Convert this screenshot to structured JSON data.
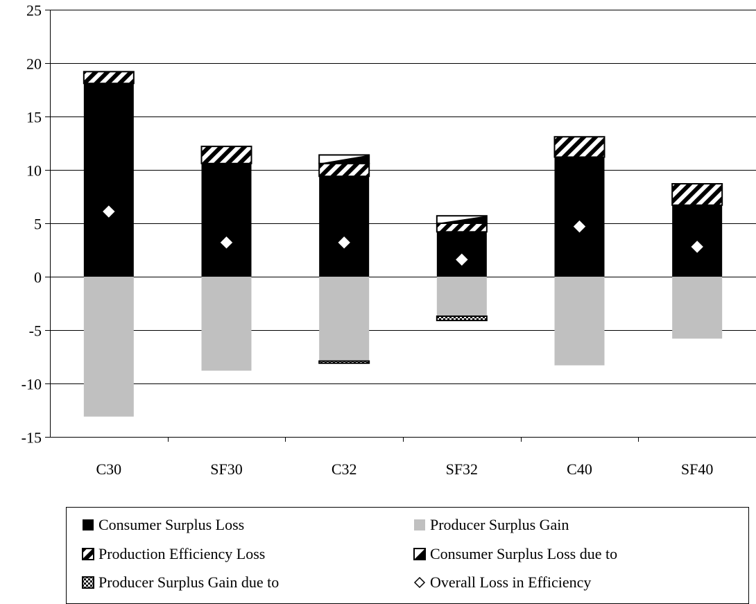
{
  "chart_data": {
    "type": "bar",
    "stacked": true,
    "categories": [
      "C30",
      "SF30",
      "C32",
      "SF32",
      "C40",
      "SF40"
    ],
    "ylim": [
      -15,
      25
    ],
    "yticks": [
      -15,
      -10,
      -5,
      0,
      5,
      10,
      15,
      20,
      25
    ],
    "ytick_labels": [
      "-15",
      "-10",
      "-5",
      "0",
      "5",
      "10",
      "15",
      "20",
      "25"
    ],
    "grid": true,
    "legend_position": "bottom",
    "series": [
      {
        "name": "Consumer Surplus Loss",
        "pattern": "solid-black",
        "values": [
          18.1,
          10.6,
          9.4,
          4.2,
          11.2,
          6.7
        ]
      },
      {
        "name": "Production Efficiency Loss",
        "pattern": "diagonal-stripes",
        "values": [
          1.1,
          1.6,
          1.2,
          0.8,
          1.9,
          2.0
        ]
      },
      {
        "name": "Consumer Surplus Loss due to",
        "pattern": "corner-triangle",
        "values": [
          0.0,
          0.0,
          0.8,
          0.7,
          0.0,
          0.0
        ]
      },
      {
        "name": "Producer Surplus Gain",
        "pattern": "solid-gray",
        "values": [
          -13.1,
          -8.8,
          -7.9,
          -3.7,
          -8.3,
          -5.8
        ]
      },
      {
        "name": "Producer Surplus Gain due to",
        "pattern": "checker",
        "values": [
          0.0,
          0.0,
          -0.2,
          -0.4,
          0.0,
          0.0
        ]
      },
      {
        "name": "Overall Loss in Efficiency",
        "marker": "diamond",
        "values": [
          6.1,
          3.2,
          3.2,
          1.6,
          4.7,
          2.8
        ]
      }
    ]
  },
  "legend": {
    "items": [
      {
        "label": "Consumer Surplus Loss",
        "swatch": "solid-black"
      },
      {
        "label": "Producer Surplus Gain",
        "swatch": "solid-gray"
      },
      {
        "label": "Production Efficiency Loss",
        "swatch": "diagonal-stripes"
      },
      {
        "label": "Consumer Surplus Loss due to",
        "swatch": "corner-triangle"
      },
      {
        "label": "Producer Surplus Gain due to",
        "swatch": "checker"
      },
      {
        "label": "Overall Loss in Efficiency",
        "swatch": "diamond"
      }
    ]
  },
  "colors": {
    "black": "#000000",
    "gray": "#c0c0c0",
    "white": "#ffffff"
  }
}
